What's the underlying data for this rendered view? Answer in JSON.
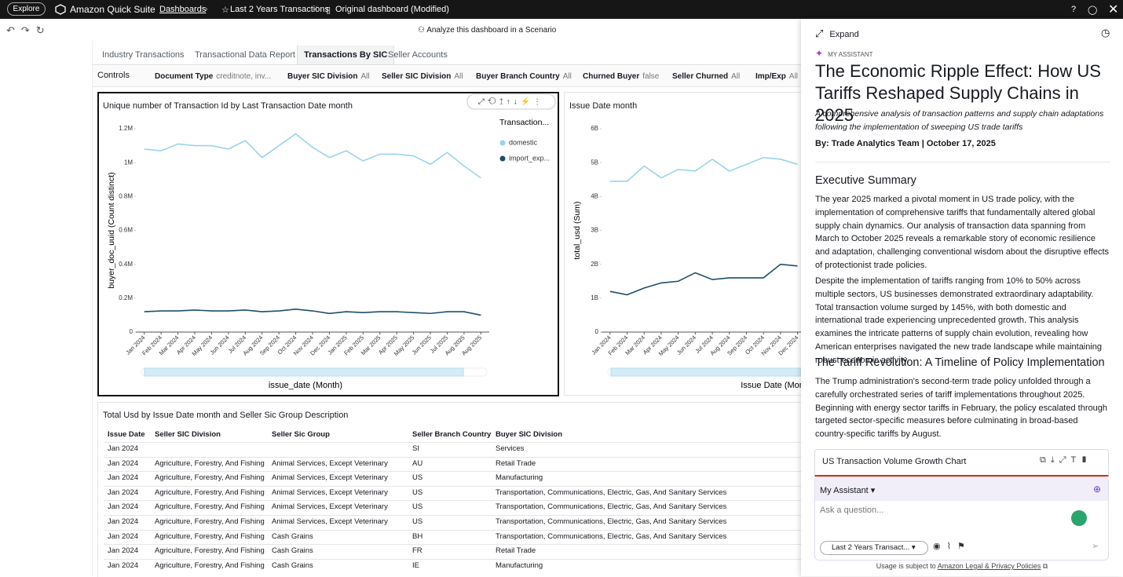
{
  "topbar": {
    "explore": "Explore",
    "app_name": "Amazon Quick Suite",
    "breadcrumb": [
      "Dashboards",
      "Last 2 Years Transactions",
      "Original dashboard (Modified)"
    ]
  },
  "toolbar": {
    "scenario": "Analyze this dashboard in a Scenario"
  },
  "tabs": [
    "Industry Transactions",
    "Transactional Data Report",
    "Transactions By SIC",
    "Seller Accounts"
  ],
  "controls": {
    "label": "Controls",
    "filters": [
      {
        "name": "Document Type",
        "value": "creditnote, inv..."
      },
      {
        "name": "Buyer SIC Division",
        "value": "All"
      },
      {
        "name": "Seller SIC Division",
        "value": "All"
      },
      {
        "name": "Buyer Branch Country",
        "value": "All"
      },
      {
        "name": "Churned Buyer",
        "value": "false"
      },
      {
        "name": "Seller Churned",
        "value": "All"
      },
      {
        "name": "Imp/Exp",
        "value": "All"
      }
    ]
  },
  "chart_data": [
    {
      "type": "line",
      "title": "Unique number of Transaction Id by Last Transaction Date month",
      "y_label": "buyer_doc_uuid (Count distinct)",
      "x_label": "issue_date (Month)",
      "legend_title": "Transaction...",
      "grid": false,
      "categories": [
        "Jan 2024",
        "Feb 2024",
        "Mar 2024",
        "Apr 2024",
        "May 2024",
        "Jun 2024",
        "Jul 2024",
        "Aug 2024",
        "Sep 2024",
        "Oct 2024",
        "Nov 2024",
        "Dec 2024",
        "Jan 2025",
        "Feb 2025",
        "Mar 2025",
        "Apr 2025",
        "May 2025",
        "Jun 2025",
        "Jul 2025",
        "Aug 2025",
        "Aug 2025"
      ],
      "ylim": [
        0,
        1200000
      ],
      "yticks": [
        0,
        {
          "value": 200000,
          "label": "0.2M"
        },
        {
          "value": 400000,
          "label": "0.4M"
        },
        {
          "value": 600000,
          "label": "0.6M"
        },
        {
          "value": 800000,
          "label": "0.8M"
        },
        {
          "value": 1000000,
          "label": "1M"
        },
        {
          "value": 1200000,
          "label": "1.2M"
        }
      ],
      "series": [
        {
          "name": "domestic",
          "color": "#9ad4ea",
          "values": [
            1080000,
            1070000,
            1110000,
            1100000,
            1100000,
            1080000,
            1130000,
            1030000,
            1100000,
            1170000,
            1090000,
            1030000,
            1070000,
            1010000,
            1050000,
            1050000,
            1040000,
            990000,
            1060000,
            980000,
            910000
          ]
        },
        {
          "name": "import_exp...",
          "color": "#1f4e6b",
          "values": [
            120000,
            125000,
            125000,
            130000,
            125000,
            125000,
            130000,
            120000,
            125000,
            135000,
            125000,
            110000,
            120000,
            115000,
            120000,
            120000,
            115000,
            110000,
            120000,
            120000,
            100000
          ]
        }
      ]
    },
    {
      "type": "line",
      "title": "Issue Date month",
      "y_label": "total_usd (Sum)",
      "x_label": "Issue Date (Month)",
      "grid": false,
      "categories": [
        "Jan 2024",
        "Feb 2024",
        "Mar 2024",
        "Apr 2024",
        "May 2024",
        "Jun 2024",
        "Jul 2024",
        "Aug 2024",
        "Sep 2024",
        "Oct 2024",
        "Nov 2024",
        "Dec 2024"
      ],
      "ylim": [
        0,
        6000000000
      ],
      "yticks": [
        0,
        {
          "value": 1000000000,
          "label": "1B"
        },
        {
          "value": 2000000000,
          "label": "2B"
        },
        {
          "value": 3000000000,
          "label": "3B"
        },
        {
          "value": 4000000000,
          "label": "4B"
        },
        {
          "value": 5000000000,
          "label": "5B"
        },
        {
          "value": 6000000000,
          "label": "6B"
        }
      ],
      "series": [
        {
          "color": "#9ad4ea",
          "values": [
            4450000000,
            4450000000,
            4900000000,
            4550000000,
            4800000000,
            4750000000,
            5100000000,
            4750000000,
            4950000000,
            5150000000,
            5100000000,
            4950000000
          ]
        },
        {
          "color": "#1f4e6b",
          "values": [
            1200000000,
            1100000000,
            1300000000,
            1450000000,
            1500000000,
            1750000000,
            1550000000,
            1600000000,
            1600000000,
            1600000000,
            2000000000,
            1950000000
          ]
        }
      ]
    }
  ],
  "table": {
    "title": "Total Usd by Issue Date month and Seller Sic Group Description",
    "columns": [
      "Issue Date",
      "Seller SIC Division",
      "Seller Sic Group",
      "Seller Branch Country",
      "Buyer SIC Division"
    ],
    "rows": [
      [
        "Jan 2024",
        "",
        "",
        "SI",
        "Services"
      ],
      [
        "Jan 2024",
        "Agriculture, Forestry, And Fishing",
        "Animal Services, Except Veterinary",
        "AU",
        "Retail Trade"
      ],
      [
        "Jan 2024",
        "Agriculture, Forestry, And Fishing",
        "Animal Services, Except Veterinary",
        "US",
        "Manufacturing"
      ],
      [
        "Jan 2024",
        "Agriculture, Forestry, And Fishing",
        "Animal Services, Except Veterinary",
        "US",
        "Transportation, Communications, Electric, Gas, And Sanitary Services"
      ],
      [
        "Jan 2024",
        "Agriculture, Forestry, And Fishing",
        "Animal Services, Except Veterinary",
        "US",
        "Transportation, Communications, Electric, Gas, And Sanitary Services"
      ],
      [
        "Jan 2024",
        "Agriculture, Forestry, And Fishing",
        "Animal Services, Except Veterinary",
        "US",
        "Transportation, Communications, Electric, Gas, And Sanitary Services"
      ],
      [
        "Jan 2024",
        "Agriculture, Forestry, And Fishing",
        "Cash Grains",
        "BH",
        "Transportation, Communications, Electric, Gas, And Sanitary Services"
      ],
      [
        "Jan 2024",
        "Agriculture, Forestry, And Fishing",
        "Cash Grains",
        "FR",
        "Retail Trade"
      ],
      [
        "Jan 2024",
        "Agriculture, Forestry, And Fishing",
        "Cash Grains",
        "IE",
        "Manufacturing"
      ]
    ]
  },
  "assistant": {
    "expand": "Expand",
    "label": "MY ASSISTANT",
    "heading": "The Economic Ripple Effect: How US Tariffs Reshaped Supply Chains in 2025",
    "subtitle": "A comprehensive analysis of transaction patterns and supply chain adaptations following the implementation of sweeping US trade tariffs",
    "byline": "By: Trade Analytics Team | October 17, 2025",
    "section1": "Executive Summary",
    "p1": "The year 2025 marked a pivotal moment in US trade policy, with the implementation of comprehensive tariffs that fundamentally altered global supply chain dynamics. Our analysis of transaction data spanning from March to October 2025 reveals a remarkable story of economic resilience and adaptation, challenging conventional wisdom about the disruptive effects of protectionist trade policies.",
    "p2": "Despite the implementation of tariffs ranging from 10% to 50% across multiple sectors, US businesses demonstrated extraordinary adaptability. Total transaction volume surged by 145%, with both domestic and international trade experiencing unprecedented growth. This analysis examines the intricate patterns of supply chain evolution, revealing how American enterprises navigated the new trade landscape while maintaining robust economic activity.",
    "section2": "The Tariff Revolution: A Timeline of Policy Implementation",
    "p3": "The Trump administration's second-term trade policy unfolded through a carefully orchestrated series of tariff implementations throughout 2025. Beginning with energy sector tariffs in February, the policy escalated through targeted sector-specific measures before culminating in broad-based country-specific tariffs by August.",
    "card_title": "US Transaction Volume Growth Chart",
    "chat_title": "My Assistant",
    "placeholder": "Ask a question...",
    "topic": "Last 2 Years Transact...",
    "footer": "Usage is subject to",
    "footer_link": "Amazon Legal & Privacy Policies"
  }
}
